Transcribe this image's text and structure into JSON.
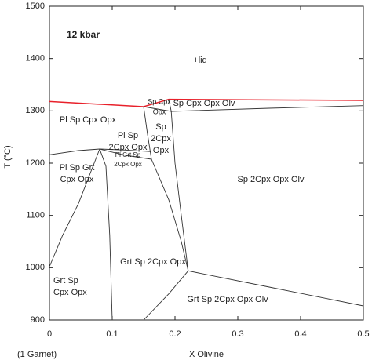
{
  "chart_data": {
    "type": "line",
    "title": "12 kbar",
    "x_label": "X Olivine",
    "x_note": "(1 Garnet)",
    "y_label": "T (°C)",
    "xlim": [
      0,
      0.5
    ],
    "ylim": [
      900,
      1500
    ],
    "xticks": [
      0,
      0.1,
      0.2,
      0.3,
      0.4,
      0.5
    ],
    "yticks": [
      900,
      1000,
      1100,
      1200,
      1300,
      1400,
      1500
    ],
    "grid": false,
    "annotations": [
      [
        "+liq"
      ],
      [
        "Sp Cpx",
        "Opx"
      ],
      [
        "Sp Cpx Opx Olv"
      ],
      [
        "Pl Sp Cpx Opx"
      ],
      [
        "Sp",
        "2Cpx",
        "Opx"
      ],
      [
        "Pl Sp",
        "2Cpx Opx"
      ],
      [
        "Pl Grt Sp",
        "2Cpx Opx"
      ],
      [
        "Pl Sp Grt",
        "Cpx Opx"
      ],
      [
        "Sp 2Cpx Opx Olv"
      ],
      [
        "Grt Sp 2Cpx Opx"
      ],
      [
        "Grt Sp",
        "Cpx Opx"
      ],
      [
        "Grt Sp 2Cpx Opx Olv"
      ]
    ],
    "series": [
      {
        "color": "#e8202a",
        "x": [
          0,
          0.15,
          0.19,
          0.5
        ],
        "y": [
          1318,
          1308,
          1322,
          1320
        ]
      },
      {
        "color": "#333333",
        "x": [
          0,
          0.046,
          0.08,
          0.121,
          0.1625
        ],
        "y": [
          1216,
          1224,
          1227,
          1225,
          1222
        ]
      },
      {
        "color": "#333333",
        "x": [
          0.08,
          0.121,
          0.1625
        ],
        "y": [
          1227,
          1215,
          1207.5
        ]
      },
      {
        "color": "#333333",
        "x": [
          0,
          0.021,
          0.046,
          0.08
        ],
        "y": [
          1002,
          1062,
          1122,
          1227
        ]
      },
      {
        "color": "#333333",
        "x": [
          0.08,
          0.09,
          0.096,
          0.1
        ],
        "y": [
          1227,
          1194,
          1062,
          900
        ]
      },
      {
        "color": "#333333",
        "x": [
          0.15,
          0.156,
          0.1625
        ],
        "y": [
          1308,
          1257,
          1207.5
        ]
      },
      {
        "color": "#333333",
        "x": [
          0.19,
          0.194,
          0.2,
          0.21,
          0.221
        ],
        "y": [
          1322,
          1299,
          1200,
          1100,
          994
        ]
      },
      {
        "color": "#333333",
        "x": [
          0.1625,
          0.19,
          0.21,
          0.221
        ],
        "y": [
          1207.5,
          1130,
          1050,
          994
        ]
      },
      {
        "color": "#333333",
        "x": [
          0.221,
          0.35,
          0.5
        ],
        "y": [
          994,
          963,
          927
        ]
      },
      {
        "color": "#333333",
        "x": [
          0.221,
          0.19,
          0.15
        ],
        "y": [
          994,
          950,
          900
        ]
      },
      {
        "color": "#333333",
        "x": [
          0.194,
          0.35,
          0.5
        ],
        "y": [
          1299,
          1305,
          1310
        ]
      },
      {
        "color": "#333333",
        "x": [
          0.15,
          0.194
        ],
        "y": [
          1308,
          1299
        ]
      }
    ]
  }
}
